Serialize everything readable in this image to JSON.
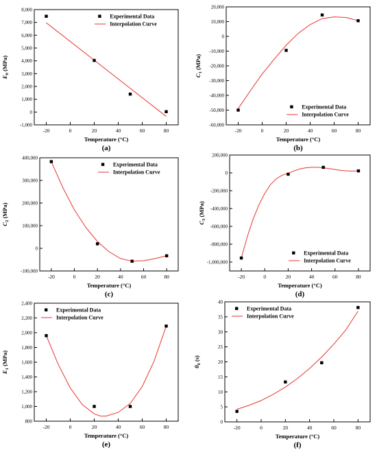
{
  "figure": {
    "legend_marker_label": "Experimental Data",
    "legend_line_label": "Interpolation Curve",
    "series_color": "#e8322c",
    "marker_color": "#000000"
  },
  "chart_data": [
    {
      "type": "scatter",
      "panel_label": "(a)",
      "xlabel": "Temperature (°C)",
      "ylabel_main": "E",
      "ylabel_sub": "0",
      "ylabel_unit": " (MPa)",
      "xlim": [
        -30,
        90
      ],
      "ylim": [
        -1000,
        8000
      ],
      "xticks": [
        -20,
        0,
        20,
        40,
        60,
        80
      ],
      "yticks": [
        -1000,
        0,
        1000,
        2000,
        3000,
        4000,
        5000,
        6000,
        7000,
        8000
      ],
      "ytick_labels": [
        "-1,000",
        "0",
        "1,000",
        "2,000",
        "3,000",
        "4,000",
        "5,000",
        "6,000",
        "7,000",
        "8,000"
      ],
      "legend_position": "top-right",
      "points": [
        [
          -20,
          7480
        ],
        [
          20,
          4030
        ],
        [
          50,
          1400
        ],
        [
          80,
          30
        ]
      ],
      "curve": [
        [
          -20,
          6970
        ],
        [
          80,
          -340
        ]
      ]
    },
    {
      "type": "scatter",
      "panel_label": "(b)",
      "xlabel": "Temperature (°C)",
      "ylabel_main": "C",
      "ylabel_sub": "1",
      "ylabel_unit": " (MPa)",
      "xlim": [
        -30,
        90
      ],
      "ylim": [
        -60000,
        20000
      ],
      "xticks": [
        -20,
        0,
        20,
        40,
        60,
        80
      ],
      "yticks": [
        -60000,
        -50000,
        -40000,
        -30000,
        -20000,
        -10000,
        0,
        10000,
        20000
      ],
      "ytick_labels": [
        "-60,000",
        "-50,000",
        "-40,000",
        "-30,000",
        "-20,000",
        "-10,000",
        "0",
        "10,000",
        "20,000"
      ],
      "legend_position": "bottom-right",
      "points": [
        [
          -20,
          -50000
        ],
        [
          20,
          -9500
        ],
        [
          50,
          14500
        ],
        [
          80,
          10600
        ]
      ],
      "curve": [
        [
          -20,
          -49000
        ],
        [
          -10,
          -37000
        ],
        [
          0,
          -25500
        ],
        [
          10,
          -15500
        ],
        [
          20,
          -6000
        ],
        [
          30,
          2000
        ],
        [
          40,
          8000
        ],
        [
          50,
          12000
        ],
        [
          60,
          13200
        ],
        [
          70,
          12800
        ],
        [
          80,
          10600
        ]
      ]
    },
    {
      "type": "scatter",
      "panel_label": "(c)",
      "xlabel": "Temperature (°C)",
      "ylabel_main": "C",
      "ylabel_sub": "2",
      "ylabel_unit": " (MPa)",
      "xlim": [
        -30,
        90
      ],
      "ylim": [
        -100000,
        400000
      ],
      "xticks": [
        -20,
        0,
        20,
        40,
        60,
        80
      ],
      "yticks": [
        -100000,
        0,
        100000,
        200000,
        300000,
        400000
      ],
      "ytick_labels": [
        "-100,000",
        "0",
        "100,000",
        "200,000",
        "300,000",
        "400,000"
      ],
      "legend_position": "top-right",
      "points": [
        [
          -20,
          383000
        ],
        [
          20,
          20000
        ],
        [
          50,
          -57000
        ],
        [
          80,
          -33000
        ]
      ],
      "curve": [
        [
          -20,
          383000
        ],
        [
          -10,
          268000
        ],
        [
          0,
          170000
        ],
        [
          10,
          92000
        ],
        [
          20,
          30000
        ],
        [
          30,
          -15000
        ],
        [
          40,
          -45000
        ],
        [
          50,
          -57000
        ],
        [
          60,
          -55000
        ],
        [
          70,
          -45000
        ],
        [
          80,
          -33000
        ]
      ]
    },
    {
      "type": "scatter",
      "panel_label": "(d)",
      "xlabel": "Temperature (°C)",
      "ylabel_main": "C",
      "ylabel_sub": "3",
      "ylabel_unit": " (MPa)",
      "xlim": [
        -30,
        90
      ],
      "ylim": [
        -1100000,
        200000
      ],
      "xticks": [
        -20,
        0,
        20,
        40,
        60,
        80
      ],
      "yticks": [
        -1000000,
        -800000,
        -600000,
        -400000,
        -200000,
        0,
        200000
      ],
      "ytick_labels": [
        "-1,000,000",
        "-800,000",
        "-600,000",
        "-400,000",
        "-200,000",
        "0",
        "200,000"
      ],
      "legend_position": "bottom-right",
      "points": [
        [
          -20,
          -955000
        ],
        [
          20,
          -15000
        ],
        [
          50,
          62000
        ],
        [
          80,
          22000
        ]
      ],
      "curve": [
        [
          -20,
          -955000
        ],
        [
          -15,
          -720000
        ],
        [
          -10,
          -520000
        ],
        [
          -5,
          -360000
        ],
        [
          0,
          -230000
        ],
        [
          5,
          -130000
        ],
        [
          10,
          -65000
        ],
        [
          15,
          -25000
        ],
        [
          20,
          -5000
        ],
        [
          25,
          22000
        ],
        [
          30,
          45000
        ],
        [
          35,
          57000
        ],
        [
          40,
          62000
        ],
        [
          45,
          62000
        ],
        [
          50,
          57000
        ],
        [
          55,
          48000
        ],
        [
          60,
          38000
        ],
        [
          65,
          28000
        ],
        [
          70,
          22000
        ],
        [
          75,
          20000
        ],
        [
          80,
          22000
        ]
      ]
    },
    {
      "type": "scatter",
      "panel_label": "(e)",
      "xlabel": "Temperature (°C)",
      "ylabel_main": "E",
      "ylabel_sub": "1",
      "ylabel_unit": " (MPa)",
      "xlim": [
        -30,
        90
      ],
      "ylim": [
        800,
        2400
      ],
      "xticks": [
        -20,
        0,
        20,
        40,
        60,
        80
      ],
      "yticks": [
        800,
        1000,
        1200,
        1400,
        1600,
        1800,
        2000,
        2200,
        2400
      ],
      "ytick_labels": [
        "800",
        "1,000",
        "1,200",
        "1,400",
        "1,600",
        "1,800",
        "2,000",
        "2,200",
        "2,400"
      ],
      "legend_position": "top-left",
      "points": [
        [
          -20,
          1960
        ],
        [
          20,
          1000
        ],
        [
          50,
          1000
        ],
        [
          80,
          2090
        ]
      ],
      "curve": [
        [
          -20,
          1960
        ],
        [
          -10,
          1570
        ],
        [
          0,
          1250
        ],
        [
          10,
          1025
        ],
        [
          20,
          900
        ],
        [
          25,
          870
        ],
        [
          30,
          870
        ],
        [
          40,
          920
        ],
        [
          50,
          1040
        ],
        [
          60,
          1270
        ],
        [
          70,
          1620
        ],
        [
          80,
          2090
        ]
      ]
    },
    {
      "type": "scatter",
      "panel_label": "(f)",
      "xlabel": "Temperature (°C)",
      "ylabel_main": "θ",
      "ylabel_sub": "0",
      "ylabel_unit": " (s)",
      "xlim": [
        -30,
        90
      ],
      "ylim": [
        0,
        40
      ],
      "xticks": [
        -20,
        0,
        20,
        40,
        60,
        80
      ],
      "yticks": [
        0,
        5,
        10,
        15,
        20,
        25,
        30,
        35,
        40
      ],
      "ytick_labels": [
        "0",
        "5",
        "10",
        "15",
        "20",
        "25",
        "30",
        "35",
        "40"
      ],
      "legend_position": "top-left",
      "points": [
        [
          -20,
          3.5
        ],
        [
          20,
          13.3
        ],
        [
          50,
          19.7
        ],
        [
          80,
          38.1
        ]
      ],
      "curve": [
        [
          -20,
          4.2
        ],
        [
          -10,
          5.5
        ],
        [
          0,
          7.1
        ],
        [
          10,
          9.2
        ],
        [
          20,
          11.6
        ],
        [
          30,
          14.5
        ],
        [
          40,
          17.8
        ],
        [
          50,
          21.6
        ],
        [
          60,
          25.9
        ],
        [
          70,
          30.7
        ],
        [
          80,
          36.9
        ]
      ]
    }
  ]
}
